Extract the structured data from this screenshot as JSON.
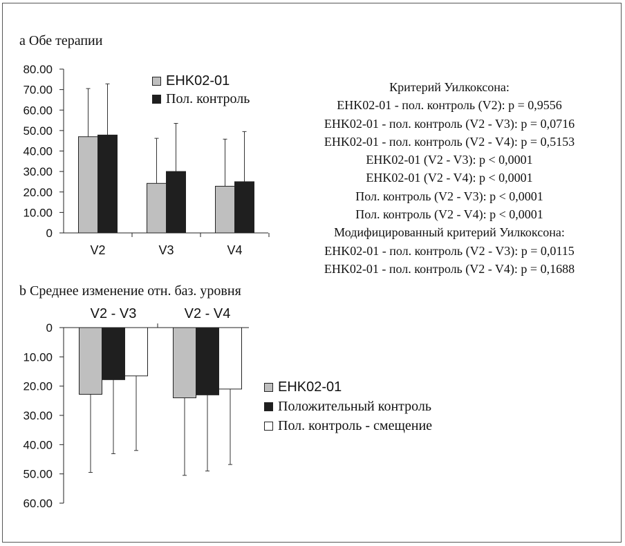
{
  "chart_data": [
    {
      "type": "bar",
      "title": "a Обе терапии",
      "categories": [
        "V2",
        "V3",
        "V4"
      ],
      "series": [
        {
          "name": "EHK02-01",
          "values": [
            47.0,
            24.2,
            22.8
          ],
          "error": [
            23.5,
            22.0,
            23.0
          ]
        },
        {
          "name": "Пол. контроль",
          "values": [
            47.8,
            30.0,
            25.0
          ],
          "error": [
            25.0,
            23.5,
            24.5
          ]
        }
      ],
      "yticks": [
        "80.00",
        "70.00",
        "60.00",
        "50.00",
        "40.00",
        "30.00",
        "20.00",
        "10.00",
        "0"
      ],
      "ylim": [
        0,
        80
      ],
      "legend_position": "top-right",
      "grid": false
    },
    {
      "type": "bar",
      "title": "b Среднее изменение отн. баз. уровня",
      "categories": [
        "V2 - V3",
        "V2 - V4"
      ],
      "series": [
        {
          "name": "EHK02-01",
          "values": [
            22.8,
            24.0
          ],
          "error": [
            26.7,
            26.5
          ]
        },
        {
          "name": "Положительный контроль",
          "values": [
            17.8,
            23.0
          ],
          "error": [
            25.3,
            26.0
          ]
        },
        {
          "name": "Пол. контроль - смещение",
          "values": [
            16.5,
            21.0
          ],
          "error": [
            25.5,
            25.8
          ]
        }
      ],
      "yticks": [
        "0",
        "10.00",
        "20.00",
        "30.00",
        "40.00",
        "50.00",
        "60.00"
      ],
      "ylim": [
        0,
        60
      ],
      "y_inverted": true,
      "legend_position": "right",
      "grid": false
    }
  ],
  "stats": [
    "Критерий Уилкоксона:",
    "EHK02-01 - пол. контроль (V2): p = 0,9556",
    "EHK02-01 - пол. контроль (V2 - V3): p = 0,0716",
    "EHK02-01 - пол. контроль (V2 - V4): p = 0,5153",
    "EHK02-01 (V2 - V3): p < 0,0001",
    "EHK02-01 (V2 - V4): p < 0,0001",
    "Пол. контроль (V2 - V3): p < 0,0001",
    "Пол. контроль (V2 - V4): p < 0,0001",
    "Модифицированный критерий Уилкоксона:",
    "EHK02-01 - пол. контроль (V2 - V3): p = 0,0115",
    "EHK02-01 - пол. контроль (V2 - V4): p = 0,1688"
  ],
  "colors": {
    "gray": "#bfbfbf",
    "black": "#1f1f1f",
    "white": "#ffffff",
    "outline": "#222222"
  }
}
